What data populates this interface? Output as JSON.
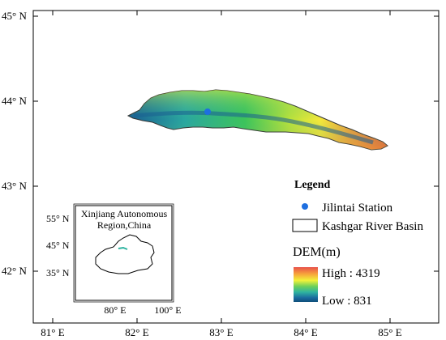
{
  "axes": {
    "x_ticks": [
      "81° E",
      "82° E",
      "83° E",
      "84° E",
      "85° E"
    ],
    "y_ticks": [
      "45° N",
      "44° N",
      "43° N",
      "42° N"
    ]
  },
  "legend": {
    "title": "Legend",
    "station_label": "Jilintai Station",
    "basin_label": "Kashgar River Basin",
    "dem_title": "DEM(m)",
    "dem_high": "High : 4319",
    "dem_low": "Low : 831",
    "station_color": "#1e6fe0",
    "dem_colors": [
      "#e8504a",
      "#f7a53b",
      "#f2f23a",
      "#6fd15a",
      "#2eb3a0",
      "#1a6b9f",
      "#0f4f7a"
    ]
  },
  "inset": {
    "title_line1": "Xinjiang Autonomous",
    "title_line2": "Region,China",
    "y_ticks": [
      "55° N",
      "45° N",
      "35° N"
    ],
    "x_ticks": [
      "80° E",
      "100° E"
    ]
  }
}
